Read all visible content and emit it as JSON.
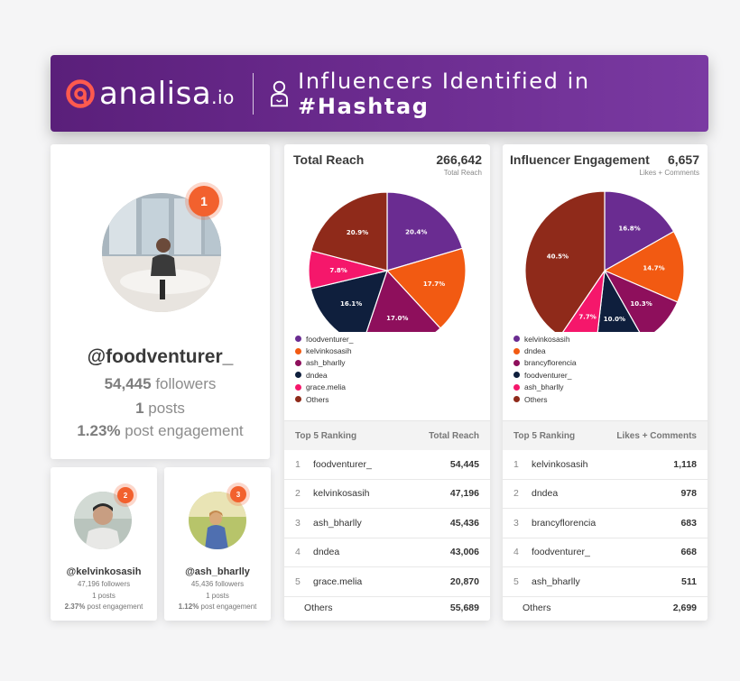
{
  "header": {
    "logo_name": "analisa",
    "logo_suffix": ".io",
    "title_prefix": "Influencers Identified in",
    "title_hashtag": "#Hashtag"
  },
  "top_influencer": {
    "rank": "1",
    "handle": "@foodventurer_",
    "followers_count": "54,445",
    "followers_label": "followers",
    "posts_count": "1",
    "posts_label": "posts",
    "engagement_value": "1.23%",
    "engagement_label": "post engagement"
  },
  "influencers_small": [
    {
      "rank": "2",
      "handle": "@kelvinkosasih",
      "followers": "47,196 followers",
      "posts": "1 posts",
      "engagement_value": "2.37%",
      "engagement_label": "post engagement"
    },
    {
      "rank": "3",
      "handle": "@ash_bharlly",
      "followers": "45,436 followers",
      "posts": "1 posts",
      "engagement_value": "1.12%",
      "engagement_label": "post engagement"
    }
  ],
  "colors": {
    "purple": "#6a2c91",
    "orange": "#f25a12",
    "magenta": "#8e0f5c",
    "navy": "#0f1f3d",
    "pink": "#f5176b",
    "rust": "#8f2a1a",
    "badge": "#f2612e"
  },
  "reach_panel": {
    "title": "Total Reach",
    "total": "266,642",
    "subtitle": "Total Reach",
    "rank_header_left": "Top 5 Ranking",
    "rank_header_right": "Total Reach",
    "rows": [
      {
        "num": "1",
        "name": "foodventurer_",
        "value": "54,445"
      },
      {
        "num": "2",
        "name": "kelvinkosasih",
        "value": "47,196"
      },
      {
        "num": "3",
        "name": "ash_bharlly",
        "value": "45,436"
      },
      {
        "num": "4",
        "name": "dndea",
        "value": "43,006"
      },
      {
        "num": "5",
        "name": "grace.melia",
        "value": "20,870"
      }
    ],
    "others": {
      "name": "Others",
      "value": "55,689"
    }
  },
  "engagement_panel": {
    "title": "Influencer Engagement",
    "total": "6,657",
    "subtitle": "Likes + Comments",
    "rank_header_left": "Top 5 Ranking",
    "rank_header_right": "Likes + Comments",
    "rows": [
      {
        "num": "1",
        "name": "kelvinkosasih",
        "value": "1,118"
      },
      {
        "num": "2",
        "name": "dndea",
        "value": "978"
      },
      {
        "num": "3",
        "name": "brancyflorencia",
        "value": "683"
      },
      {
        "num": "4",
        "name": "foodventurer_",
        "value": "668"
      },
      {
        "num": "5",
        "name": "ash_bharlly",
        "value": "511"
      }
    ],
    "others": {
      "name": "Others",
      "value": "2,699"
    }
  },
  "chart_data": [
    {
      "type": "pie",
      "title": "Total Reach",
      "categories": [
        "foodventurer_",
        "kelvinkosasih",
        "ash_bharlly",
        "dndea",
        "grace.melia",
        "Others"
      ],
      "values": [
        20.4,
        17.7,
        17.0,
        16.1,
        7.8,
        20.9
      ],
      "labels": [
        "20.4%",
        "17.7%",
        "17.0%",
        "16.1%",
        "7.8%",
        "20.9%"
      ],
      "colors": [
        "#6a2c91",
        "#f25a12",
        "#8e0f5c",
        "#0f1f3d",
        "#f5176b",
        "#8f2a1a"
      ],
      "legend_position": "bottom-left"
    },
    {
      "type": "pie",
      "title": "Influencer Engagement",
      "categories": [
        "kelvinkosasih",
        "dndea",
        "brancyflorencia",
        "foodventurer_",
        "ash_bharlly",
        "Others"
      ],
      "values": [
        16.8,
        14.7,
        10.3,
        10.0,
        7.7,
        40.5
      ],
      "labels": [
        "16.8%",
        "14.7%",
        "10.3%",
        "10.0%",
        "7.7%",
        "40.5%"
      ],
      "colors": [
        "#6a2c91",
        "#f25a12",
        "#8e0f5c",
        "#0f1f3d",
        "#f5176b",
        "#8f2a1a"
      ],
      "legend_position": "bottom-left"
    }
  ]
}
